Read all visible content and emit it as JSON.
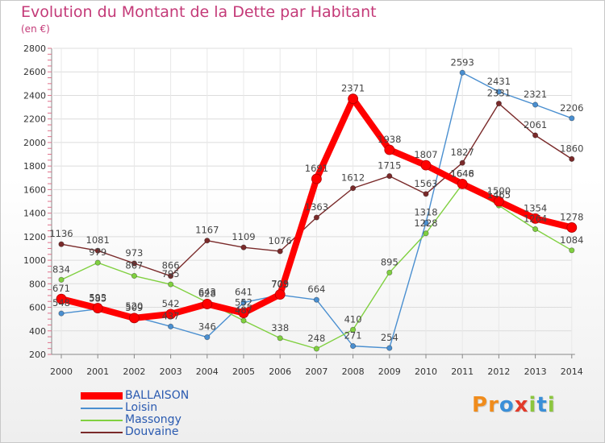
{
  "header": {
    "title": "Evolution du Montant de la Dette par Habitant",
    "subtitle": "(en €)"
  },
  "chart_data": {
    "type": "line",
    "title": "Evolution du Montant de la Dette par Habitant",
    "subtitle": "(en €)",
    "xlabel": "",
    "ylabel": "",
    "x": [
      "2000",
      "2001",
      "2002",
      "2003",
      "2004",
      "2005",
      "2006",
      "2007",
      "2008",
      "2009",
      "2010",
      "2011",
      "2012",
      "2013",
      "2014"
    ],
    "y_ticks": [
      "200",
      "400",
      "600",
      "800",
      "1000",
      "1200",
      "1400",
      "1600",
      "1800",
      "2000",
      "2200",
      "2400",
      "2600",
      "2800"
    ],
    "ylim": [
      200,
      2800
    ],
    "grid": true,
    "legend_position": "bottom-left",
    "series": [
      {
        "name": "BALLAISON",
        "color": "#ff0000",
        "values": [
          671,
          593,
          509,
          542,
          628,
          552,
          709,
          1691,
          2371,
          1938,
          1807,
          1648,
          1500,
          1354,
          1278
        ]
      },
      {
        "name": "Loisin",
        "color": "#4a8fd0",
        "values": [
          548,
          585,
          520,
          437,
          346,
          641,
          705,
          664,
          271,
          254,
          1318,
          2593,
          2431,
          2321,
          2206
        ]
      },
      {
        "name": "Massongy",
        "color": "#80d040",
        "values": [
          834,
          979,
          867,
          795,
          643,
          487,
          338,
          248,
          410,
          895,
          1228,
          1646,
          1465,
          1264,
          1084
        ]
      },
      {
        "name": "Douvaine",
        "color": "#7a2a2a",
        "values": [
          1136,
          1081,
          973,
          866,
          1167,
          1109,
          1076,
          1363,
          1612,
          1715,
          1563,
          1827,
          2331,
          2061,
          1860
        ]
      }
    ]
  },
  "logo": {
    "letters": [
      {
        "ch": "P",
        "color": "#f08c1c"
      },
      {
        "ch": "r",
        "color": "#f08c1c"
      },
      {
        "ch": "o",
        "color": "#3a8fd8"
      },
      {
        "ch": "x",
        "color": "#e23a2a"
      },
      {
        "ch": "i",
        "color": "#8cc63e"
      },
      {
        "ch": "t",
        "color": "#3a8fd8"
      },
      {
        "ch": "i",
        "color": "#8cc63e"
      }
    ]
  }
}
